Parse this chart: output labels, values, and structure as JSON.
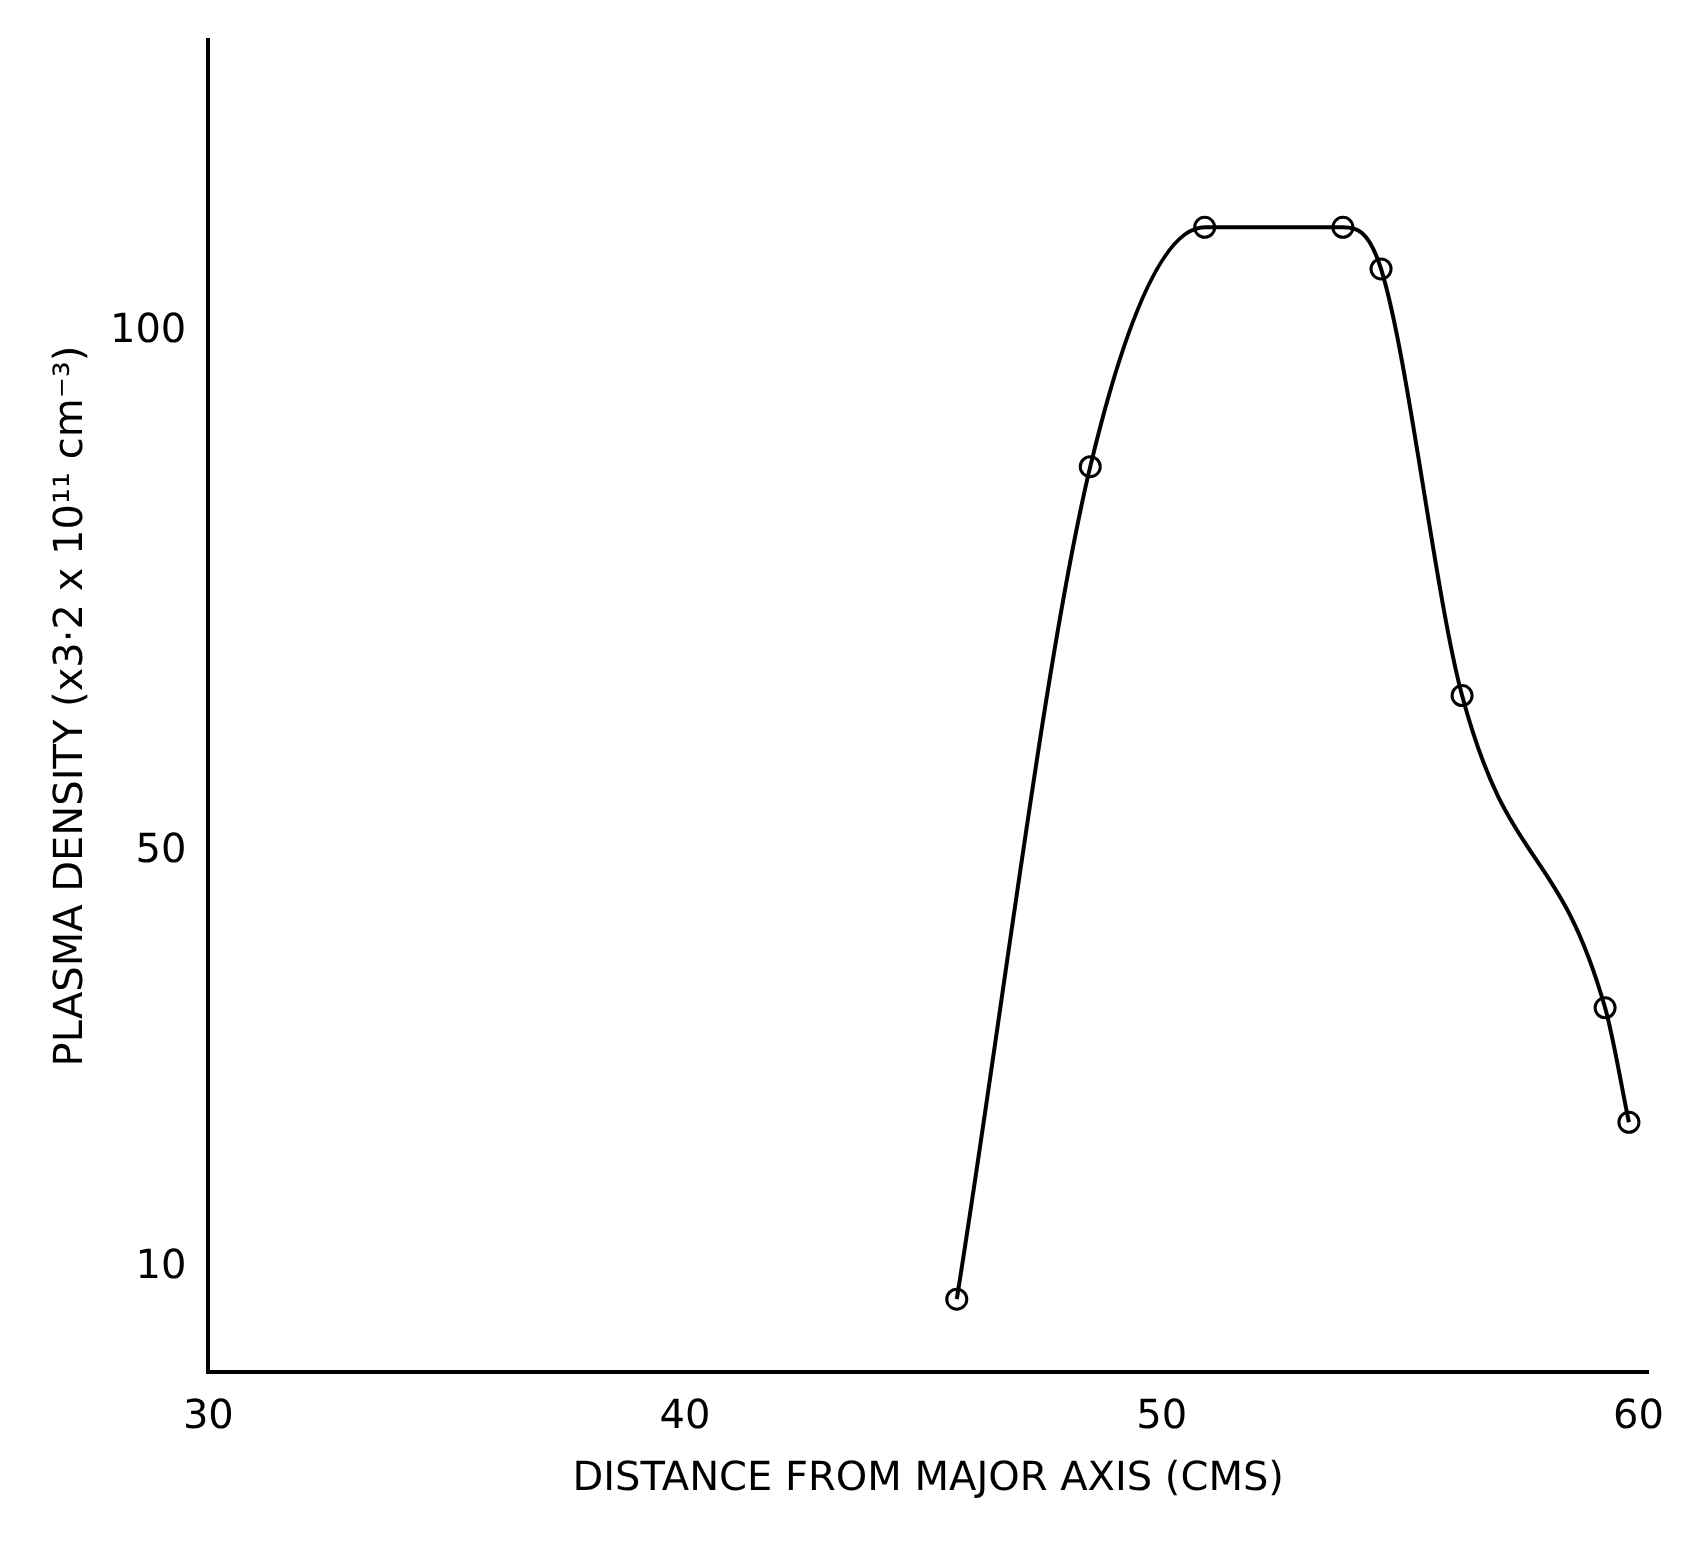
{
  "chart_data": {
    "type": "line",
    "xlabel": "DISTANCE FROM MAJOR AXIS (CMS)",
    "ylabel": "PLASMA DENSITY (x3·2 x 10¹¹ cm⁻³)",
    "x": [
      45.7,
      48.5,
      50.9,
      53.8,
      54.6,
      56.3,
      59.3,
      59.8
    ],
    "series": [
      {
        "color": "#000000",
        "values": [
          7,
          87,
          110,
          110,
          106,
          65,
          35,
          24
        ]
      }
    ],
    "xlim": [
      30,
      60.2
    ],
    "xticks": [
      30,
      40,
      50,
      60
    ],
    "ylim": [
      0,
      128
    ],
    "yticks": [
      10,
      50,
      100
    ],
    "grid": false,
    "legend": false,
    "marker": "circle",
    "line_style": "solid"
  }
}
